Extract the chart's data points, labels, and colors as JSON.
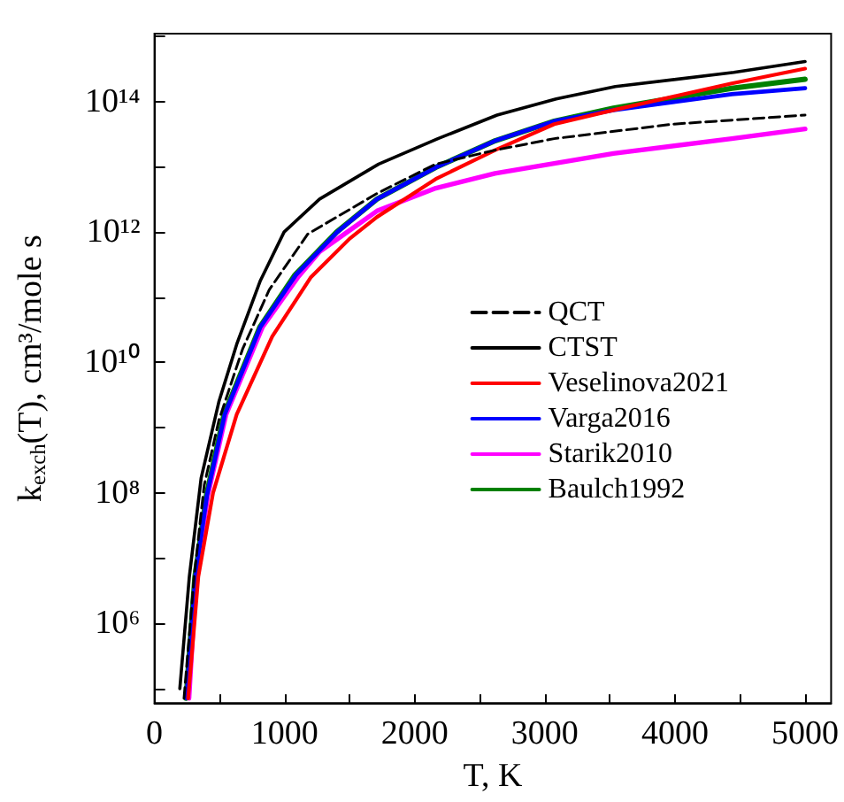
{
  "chart_data": {
    "type": "line",
    "xlabel": "T, K",
    "ylabel": "k$_{exch}$(T), cm³/mole s",
    "log": "y",
    "grid": false,
    "legend": "right",
    "marker": "none",
    "xlim": [
      0,
      5200
    ],
    "xticks": [
      0,
      {
        "value": 500,
        "label": null
      },
      1000,
      {
        "value": 1500,
        "label": null
      },
      2000,
      {
        "value": 2500,
        "label": null
      },
      3000,
      {
        "value": 3500,
        "label": null
      },
      4000,
      {
        "value": 4500,
        "label": null
      },
      5000
    ],
    "ylim": [
      60000,
      1100000000000000.0
    ],
    "yticks": [
      {
        "value": 100000,
        "label": null
      },
      {
        "value": 1000000,
        "label": "10⁶"
      },
      {
        "value": 10000000,
        "label": null
      },
      {
        "value": 100000000,
        "label": "10⁸"
      },
      {
        "value": 1000000000,
        "label": null
      },
      {
        "value": 10000000000,
        "label": "10¹⁰"
      },
      {
        "value": 100000000000,
        "label": null
      },
      {
        "value": 1000000000000,
        "label": "10¹²"
      },
      {
        "value": 10000000000000,
        "label": null
      },
      {
        "value": 100000000000000,
        "label": "10¹⁴"
      },
      {
        "value": 1000000000000000,
        "label": null
      }
    ],
    "series": [
      {
        "name": "QCT",
        "color": "#000000",
        "line_style": "dashed",
        "x": [
          227,
          305,
          382,
          495,
          677,
          882,
          1178,
          1710,
          2162,
          2617,
          3072,
          3980,
          5000
        ],
        "values": [
          71000,
          5200000,
          130000000,
          1300000000,
          16000000000,
          130000000000,
          930000000000,
          3900000000000,
          11000000000000,
          18000000000000,
          27000000000000,
          45000000000000,
          62000000000000
        ]
      },
      {
        "name": "CTST",
        "color": "#000000",
        "line_style": "solid",
        "x": [
          195,
          268,
          359,
          495,
          632,
          814,
          996,
          1269,
          1723,
          2178,
          2633,
          3087,
          3542,
          4452,
          5000
        ],
        "values": [
          100000,
          5200000,
          170000000,
          2500000000,
          19000000000,
          180000000000,
          1000000000000,
          3200000000000,
          11000000000000,
          27000000000000,
          62000000000000,
          110000000000000,
          170000000000000,
          280000000000000,
          410000000000000
        ]
      },
      {
        "name": "Veselinova2021",
        "color": "#ff0000",
        "line_style": "solid",
        "x": [
          259,
          337,
          450,
          632,
          905,
          1200,
          1500,
          1710,
          2162,
          2617,
          3072,
          3527,
          4436,
          5000
        ],
        "values": [
          71000,
          5200000,
          100000000,
          1600000000,
          25000000000,
          200000000000,
          790000000000,
          1700000000000,
          6500000000000,
          18000000000000,
          45000000000000,
          74000000000000,
          190000000000000,
          320000000000000
        ]
      },
      {
        "name": "Varga2016",
        "color": "#0000ff",
        "line_style": "solid",
        "x": [
          246,
          314,
          404,
          540,
          814,
          1087,
          1405,
          1710,
          2162,
          2617,
          3072,
          3527,
          4436,
          5000
        ],
        "values": [
          71000,
          5200000,
          93000000,
          1600000000,
          35000000000,
          220000000000,
          1000000000000,
          3200000000000,
          9800000000000,
          25000000000000,
          50000000000000,
          74000000000000,
          130000000000000,
          160000000000000
        ]
      },
      {
        "name": "Starik2010",
        "color": "#ff00ff",
        "line_style": "solid",
        "x": [
          265,
          320,
          410,
          550,
          830,
          1100,
          1269,
          1710,
          2162,
          2617,
          3527,
          4436,
          5000
        ],
        "values": [
          71000,
          5200000,
          93000000,
          1600000000,
          35000000000,
          200000000000,
          500000000000,
          2100000000000,
          4700000000000,
          7900000000000,
          16000000000000,
          27000000000000,
          38000000000000
        ]
      },
      {
        "name": "Baulch1992",
        "color": "#008000",
        "line_style": "solid",
        "x": [
          243,
          311,
          400,
          535,
          810,
          1080,
          1400,
          1710,
          2162,
          2617,
          3072,
          3527,
          4436,
          5000
        ],
        "values": [
          71000,
          5200000,
          93000000,
          1600000000,
          35000000000,
          220000000000,
          1000000000000,
          3200000000000,
          9800000000000,
          25000000000000,
          50000000000000,
          79000000000000,
          160000000000000,
          220000000000000
        ]
      }
    ]
  }
}
